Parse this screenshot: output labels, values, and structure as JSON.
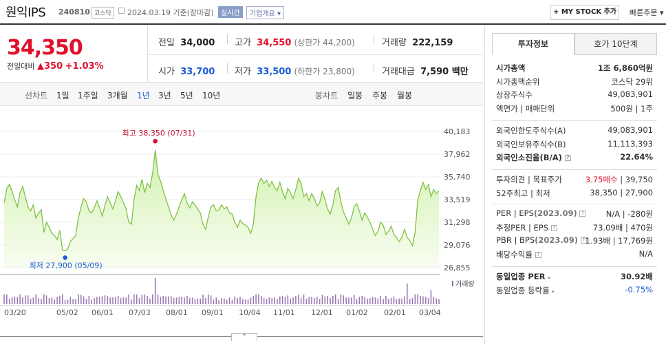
{
  "header": {
    "name": "원익IPS",
    "code": "240810",
    "market": "코스닥",
    "date": "2024.03.19",
    "basis": "기준(장마감)",
    "realtime": "실시간",
    "corp_overview": "기업개요",
    "my_stock": "+ MY STOCK 추가",
    "quick_order": "빠른주문"
  },
  "price": {
    "current": "34,350",
    "change_label": "전일대비",
    "change": "▲350",
    "change_pct": "+1.03%"
  },
  "summary": {
    "prev_close_label": "전일",
    "prev_close": "34,000",
    "high_label": "고가",
    "high": "34,550",
    "upper_limit": "(상한가 44,200)",
    "volume_label": "거래량",
    "volume": "222,159",
    "open_label": "시가",
    "open": "33,700",
    "low_label": "저가",
    "low": "33,500",
    "lower_limit": "(하한가 23,800)",
    "amount_label": "거래대금",
    "amount": "7,590 백만"
  },
  "toolbar": {
    "line_chart": "선차트",
    "periods": [
      "1일",
      "1주일",
      "3개월",
      "1년",
      "3년",
      "5년",
      "10년"
    ],
    "selected": "1년",
    "candle_chart": "봉차트",
    "candle_periods": [
      "일봉",
      "주봉",
      "월봉"
    ]
  },
  "chart_data": {
    "type": "area",
    "y_ticks": [
      "40,183",
      "37,962",
      "35,740",
      "33,519",
      "31,298",
      "29,076",
      "26,855"
    ],
    "ylim": [
      26855,
      40183
    ],
    "x_ticks": [
      "03/20",
      "05/02",
      "06/01",
      "07/03",
      "08/01",
      "09/01",
      "10/04",
      "11/01",
      "12/01",
      "01/02",
      "02/01",
      "03/04"
    ],
    "high_annotation": "최고 38,350 (07/31)",
    "low_annotation": "최저 27,900 (05/09)",
    "volume_label": "거래량",
    "series": [
      {
        "values": [
          33200,
          34600,
          35000,
          34300,
          33500,
          32800,
          34200,
          34800,
          33800,
          32800,
          32400,
          33000,
          31700,
          32200,
          32500,
          30300,
          31300,
          30800,
          30200,
          30000,
          29600,
          30500,
          28600,
          28500,
          28700,
          29400,
          29700,
          30000,
          31700,
          32800,
          33600,
          33300,
          32400,
          32200,
          32700,
          33400,
          32700,
          31900,
          32900,
          33800,
          33200,
          32600,
          33400,
          34300,
          33800,
          33200,
          32600,
          31300,
          31100,
          33500,
          34900,
          34400,
          35500,
          34200,
          35100,
          34700,
          36100,
          38350,
          36000,
          35300,
          34400,
          33600,
          32800,
          32000,
          31500,
          32100,
          32800,
          33500,
          34100,
          33200,
          32700,
          33300,
          33000,
          32600,
          32200,
          31100,
          30600,
          31800,
          32800,
          33000,
          32400,
          32500,
          33000,
          32600,
          32800,
          32200,
          32100,
          31300,
          30800,
          31500,
          31200,
          31000,
          30800,
          30200,
          31100,
          33800,
          35200,
          35600,
          35100,
          35400,
          34800,
          35300,
          34700,
          34400,
          35200,
          34300,
          33600,
          34600,
          34200,
          33600,
          34500,
          35600,
          35100,
          33800,
          34100,
          33400,
          34100,
          33600,
          32900,
          33200,
          34300,
          33500,
          32600,
          32100,
          33000,
          34400,
          34700,
          33300,
          32300,
          31700,
          31100,
          31700,
          32800,
          33100,
          32400,
          31500,
          32200,
          31800,
          31300,
          30600,
          30000,
          30400,
          31300,
          31000,
          30100,
          30400,
          30900,
          30100,
          29800,
          29400,
          29800,
          30600,
          29800,
          29500,
          29000,
          30300,
          33500,
          34400,
          35200,
          34500,
          35000,
          33800,
          34500,
          34100,
          34350
        ]
      }
    ]
  },
  "tabs": [
    "투자정보",
    "호가 10단계"
  ],
  "invest": {
    "g1": [
      {
        "k": "시가총액",
        "v": "1조 6,860억원",
        "bold": true
      },
      {
        "k": "시가총액순위",
        "v": "코스닥 29위"
      },
      {
        "k": "상장주식수",
        "v": "49,083,901"
      },
      {
        "k": "액면가 | 매매단위",
        "v": "500원 | 1주"
      }
    ],
    "g2": [
      {
        "k": "외국인한도주식수(A)",
        "v": "49,083,901"
      },
      {
        "k": "외국인보유주식수(B)",
        "v": "11,113,393"
      },
      {
        "k": "외국인소진율(B/A)",
        "v": "22.64%",
        "bold": true
      }
    ],
    "g3": {
      "opinion_label": "투자의견 | 목표주가",
      "opinion": "3.75매수",
      "target": "39,750",
      "w52_label": "52주최고 | 최저",
      "w52": "38,350 | 27,900"
    },
    "g4": {
      "per_label": "PER | EPS",
      "per_year": "(2023.09)",
      "per": "N/A | -280원",
      "eper_label": "추정PER | EPS",
      "eper": "73.09배 | 470원",
      "pbr_label": "PBR | BPS",
      "pbr_year": "(2023.09)",
      "pbr": "1.93배 | 17,769원",
      "div_label": "배당수익률",
      "div": "N/A"
    },
    "g5": {
      "ind_per_label": "동일업종 PER",
      "ind_per": "30.92배",
      "ind_rate_label": "동일업종 등락률",
      "ind_rate": "-0.75%"
    }
  },
  "colors": {
    "up": "#e0102d",
    "down": "#1a5bd6",
    "line": "#7ec242"
  }
}
